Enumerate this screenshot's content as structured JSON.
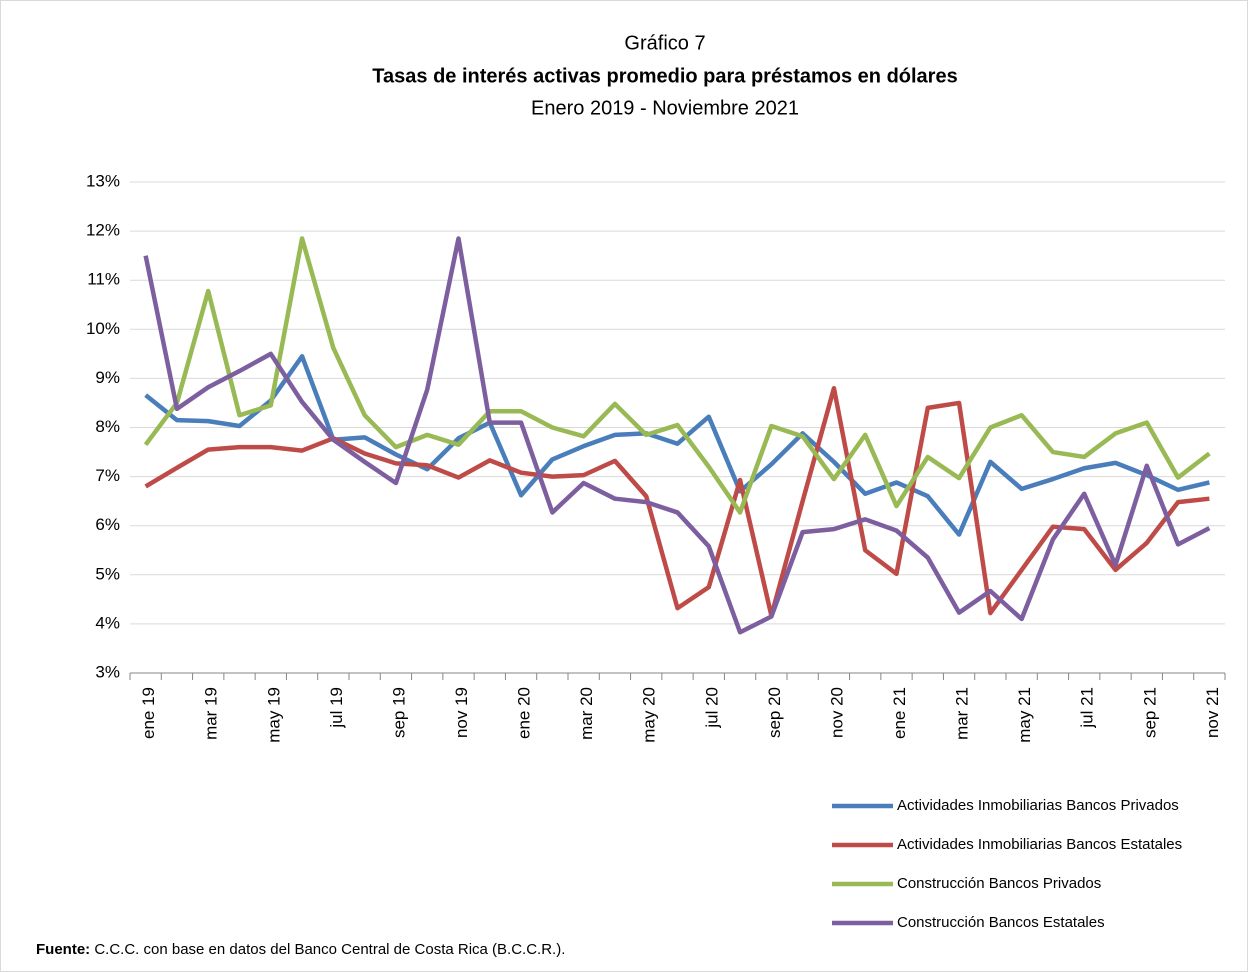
{
  "chart_data": {
    "type": "line",
    "title": "Gráfico 7",
    "subtitle": "Tasas de interés activas promedio para préstamos en dólares",
    "period": "Enero 2019 - Noviembre 2021",
    "categories": [
      "ene 19",
      null,
      "mar 19",
      null,
      "may 19",
      null,
      "jul 19",
      null,
      "sep 19",
      null,
      "nov 19",
      null,
      "ene 20",
      null,
      "mar 20",
      null,
      "may 20",
      null,
      "jul 20",
      null,
      "sep 20",
      null,
      "nov 20",
      null,
      "ene 21",
      null,
      "mar 21",
      null,
      "may 21",
      null,
      "jul 21",
      null,
      "sep 21",
      null,
      "nov 21"
    ],
    "ylim": [
      3,
      13
    ],
    "yticks": [
      {
        "value": 3,
        "label": "3%"
      },
      {
        "value": 4,
        "label": "4%"
      },
      {
        "value": 5,
        "label": "5%"
      },
      {
        "value": 6,
        "label": "6%"
      },
      {
        "value": 7,
        "label": "7%"
      },
      {
        "value": 8,
        "label": "8%"
      },
      {
        "value": 9,
        "label": "9%"
      },
      {
        "value": 10,
        "label": "10%"
      },
      {
        "value": 11,
        "label": "11%"
      },
      {
        "value": 12,
        "label": "12%"
      },
      {
        "value": 13,
        "label": "13%"
      }
    ],
    "grid": true,
    "legend": "bottom-right",
    "series": [
      {
        "name": "Actividades Inmobiliarias Bancos Privados",
        "color": "#4a7ebb",
        "values": [
          8.66,
          8.15,
          8.13,
          8.03,
          8.55,
          9.45,
          7.75,
          7.8,
          7.45,
          7.15,
          7.78,
          8.1,
          6.62,
          7.35,
          7.62,
          7.85,
          7.88,
          7.67,
          8.22,
          6.7,
          7.25,
          7.88,
          7.3,
          6.65,
          6.88,
          6.6,
          5.82,
          7.3,
          6.75,
          6.95,
          7.17,
          7.28,
          7.03,
          6.73,
          6.88
        ]
      },
      {
        "name": "Actividades Inmobiliarias Bancos Estatales",
        "color": "#be4b48",
        "values": [
          6.8,
          7.18,
          7.55,
          7.6,
          7.6,
          7.53,
          7.78,
          7.47,
          7.27,
          7.23,
          6.98,
          7.33,
          7.08,
          7.0,
          7.03,
          7.32,
          6.6,
          4.32,
          4.75,
          6.93,
          4.17,
          6.5,
          8.8,
          5.5,
          5.02,
          8.4,
          8.5,
          4.22,
          5.1,
          5.98,
          5.93,
          5.1,
          5.65,
          6.48,
          6.55
        ]
      },
      {
        "name": "Construcción Bancos Privados",
        "color": "#98b954",
        "values": [
          7.65,
          8.5,
          10.78,
          8.25,
          8.45,
          11.85,
          9.62,
          8.25,
          7.6,
          7.85,
          7.65,
          8.33,
          8.33,
          8.0,
          7.82,
          8.48,
          7.85,
          8.05,
          7.2,
          6.27,
          8.03,
          7.82,
          6.95,
          7.85,
          6.4,
          7.4,
          6.97,
          8.0,
          8.25,
          7.5,
          7.4,
          7.88,
          8.1,
          6.98,
          7.47
        ]
      },
      {
        "name": "Construcción Bancos Estatales",
        "color": "#7d5fa0",
        "values": [
          11.5,
          8.38,
          8.82,
          9.15,
          9.5,
          8.52,
          7.75,
          7.3,
          6.87,
          8.77,
          11.85,
          8.1,
          8.1,
          6.27,
          6.87,
          6.55,
          6.48,
          6.27,
          5.58,
          3.83,
          4.15,
          5.87,
          5.93,
          6.13,
          5.9,
          5.35,
          4.23,
          4.67,
          4.1,
          5.72,
          6.65,
          5.2,
          7.22,
          5.62,
          5.95
        ]
      }
    ],
    "source": {
      "label": "Fuente:",
      "text": "C.C.C. con base en datos del Banco Central de Costa Rica (B.C.C.R.)."
    }
  }
}
